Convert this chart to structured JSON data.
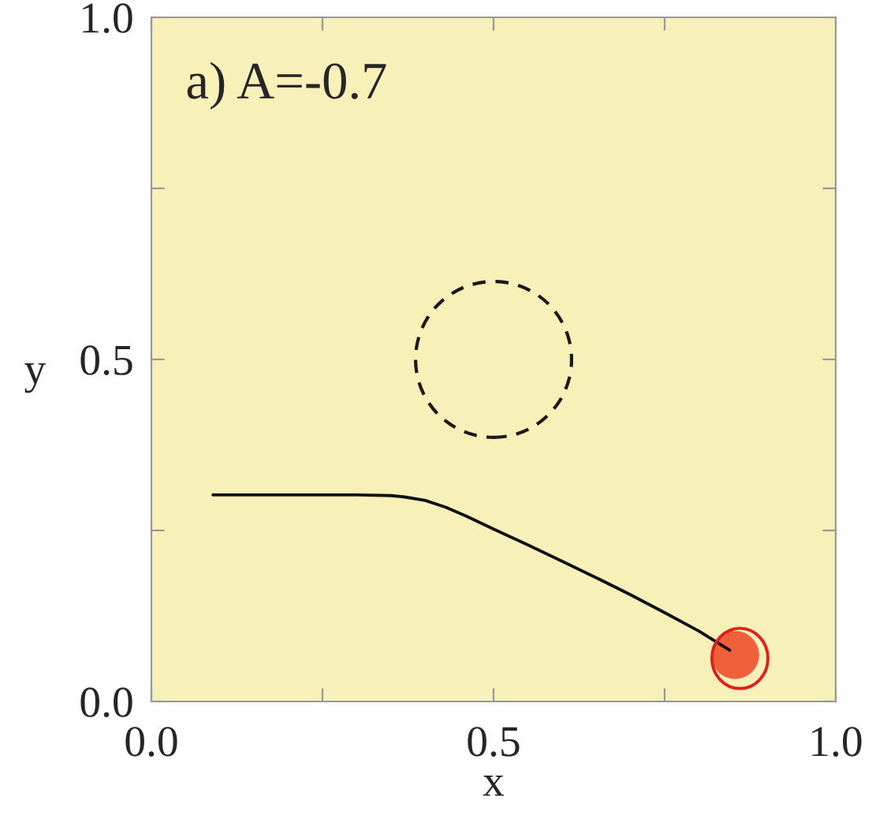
{
  "chart_data": {
    "type": "line",
    "title": "a) A=-0.7",
    "xlabel": "x",
    "ylabel": "y",
    "xlim": [
      0,
      1
    ],
    "ylim": [
      0,
      1
    ],
    "xticks": [
      {
        "value": 0,
        "label": "0.0"
      },
      {
        "value": 0.25,
        "label": null
      },
      {
        "value": 0.5,
        "label": "0.5"
      },
      {
        "value": 0.75,
        "label": null
      },
      {
        "value": 1,
        "label": "1.0"
      }
    ],
    "yticks": [
      {
        "value": 0,
        "label": "0.0"
      },
      {
        "value": 0.25,
        "label": null
      },
      {
        "value": 0.5,
        "label": "0.5"
      },
      {
        "value": 0.75,
        "label": null
      },
      {
        "value": 1,
        "label": "1.0"
      }
    ],
    "grid": false,
    "legend": false,
    "series": [
      {
        "type": "scatter",
        "color": "#f0603a",
        "marker": "circle",
        "x": [
          0.853
        ],
        "values": [
          0.068
        ]
      },
      {
        "color": "#111111",
        "x": [
          0.09,
          0.15,
          0.2,
          0.25,
          0.3,
          0.35,
          0.37,
          0.4,
          0.43,
          0.46,
          0.5,
          0.55,
          0.6,
          0.65,
          0.7,
          0.75,
          0.8,
          0.845
        ],
        "values": [
          0.302,
          0.302,
          0.302,
          0.302,
          0.302,
          0.301,
          0.299,
          0.294,
          0.284,
          0.271,
          0.252,
          0.229,
          0.205,
          0.181,
          0.156,
          0.13,
          0.103,
          0.075
        ]
      }
    ]
  }
}
